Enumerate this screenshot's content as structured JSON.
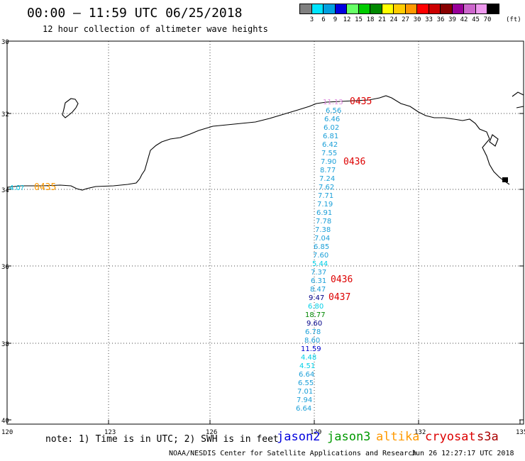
{
  "header": {
    "title": "00:00 – 11:59 UTC 06/25/2018",
    "subtitle": "12 hour collection of altimeter wave heights"
  },
  "color_scale": {
    "unit": "(ft)",
    "swatches": [
      "#808080",
      "#00e5ff",
      "#00a0e0",
      "#0000e0",
      "#66ff66",
      "#00cc00",
      "#008800",
      "#ffff00",
      "#ffcc00",
      "#ff9900",
      "#ff0000",
      "#cc0000",
      "#880000",
      "#990099",
      "#cc66cc",
      "#ee99ee",
      "#000000"
    ],
    "labels": [
      "3",
      "6",
      "9",
      "12",
      "15",
      "18",
      "21",
      "24",
      "27",
      "30",
      "33",
      "36",
      "39",
      "42",
      "45",
      "70"
    ]
  },
  "axes": {
    "lat_labels": [
      "30",
      "32",
      "34",
      "36",
      "38",
      "40"
    ],
    "lon_labels": [
      "120",
      "123",
      "126",
      "129",
      "132",
      "135"
    ]
  },
  "passes": [
    {
      "time": "0435",
      "color": "#dd0000",
      "top": "true"
    },
    {
      "time": "0436",
      "color": "#dd0000"
    },
    {
      "time": "0436",
      "color": "#dd0000"
    },
    {
      "time": "0437",
      "color": "#dd0000"
    },
    {
      "time": "0435",
      "color": "#ff9900"
    }
  ],
  "left_point": {
    "value": "4.0?",
    "color": "#00c8e8"
  },
  "top_point": {
    "value": "11.13",
    "color": "#dd88dd"
  },
  "track_values": [
    {
      "v": "6.56",
      "c": "#1a9fd8"
    },
    {
      "v": "6.46",
      "c": "#1a9fd8"
    },
    {
      "v": "6.02",
      "c": "#1a9fd8"
    },
    {
      "v": "6.81",
      "c": "#1a9fd8"
    },
    {
      "v": "6.42",
      "c": "#1a9fd8"
    },
    {
      "v": "7.55",
      "c": "#1a9fd8"
    },
    {
      "v": "7.90",
      "c": "#1a9fd8"
    },
    {
      "v": "8.77",
      "c": "#1a9fd8"
    },
    {
      "v": "7.24",
      "c": "#1a9fd8"
    },
    {
      "v": "7.62",
      "c": "#1a9fd8"
    },
    {
      "v": "7.71",
      "c": "#1a9fd8"
    },
    {
      "v": "7.19",
      "c": "#1a9fd8"
    },
    {
      "v": "6.91",
      "c": "#1a9fd8"
    },
    {
      "v": "7.78",
      "c": "#1a9fd8"
    },
    {
      "v": "7.38",
      "c": "#1a9fd8"
    },
    {
      "v": "7.04",
      "c": "#1a9fd8"
    },
    {
      "v": "6.85",
      "c": "#1a9fd8"
    },
    {
      "v": "7.60",
      "c": "#1a9fd8"
    },
    {
      "v": "5.44",
      "c": "#00d0e8"
    },
    {
      "v": "7.37",
      "c": "#1a9fd8"
    },
    {
      "v": "6.31",
      "c": "#1a9fd8"
    },
    {
      "v": "8.47",
      "c": "#1a9fd8"
    },
    {
      "v": "9.47",
      "c": "#000088"
    },
    {
      "v": "6.80",
      "c": "#00d0e8"
    },
    {
      "v": "18.77",
      "c": "#008800"
    },
    {
      "v": "9.60",
      "c": "#000088"
    },
    {
      "v": "6.78",
      "c": "#1a9fd8"
    },
    {
      "v": "8.60",
      "c": "#1a9fd8"
    },
    {
      "v": "11.59",
      "c": "#0000cc"
    },
    {
      "v": "4.48",
      "c": "#00d0e8"
    },
    {
      "v": "4.51",
      "c": "#00d0e8"
    },
    {
      "v": "6.64",
      "c": "#1a9fd8"
    },
    {
      "v": "6.55",
      "c": "#1a9fd8"
    },
    {
      "v": "7.01",
      "c": "#1a9fd8"
    },
    {
      "v": "7.94",
      "c": "#1a9fd8"
    },
    {
      "v": "6.64",
      "c": "#1a9fd8"
    }
  ],
  "note": "note: 1) Time is in UTC; 2) SWH is in feet",
  "satellites": [
    {
      "name": "jason2",
      "color": "#0000dd"
    },
    {
      "name": "jason3",
      "color": "#009900"
    },
    {
      "name": "altika",
      "color": "#ff9900"
    },
    {
      "name": "cryosat",
      "color": "#dd0000"
    },
    {
      "name": "s3a",
      "color": "#aa0000"
    }
  ],
  "footer": {
    "credit": "NOAA/NESDIS Center for Satellite Applications and Research",
    "timestamp": "Jun 26 12:27:17 UTC 2018"
  }
}
